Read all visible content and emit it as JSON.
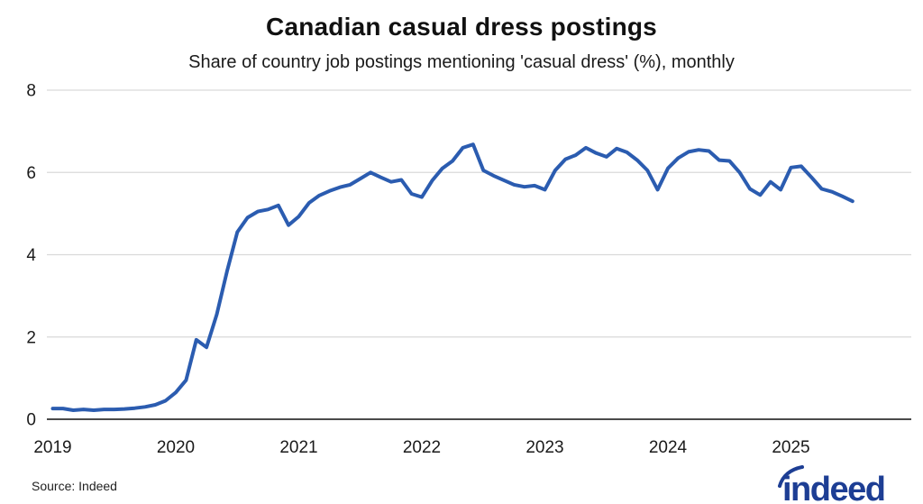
{
  "header": {
    "title": "Canadian casual dress postings",
    "subtitle": "Share of country job postings mentioning 'casual dress' (%), monthly"
  },
  "footer": {
    "source": "Source: Indeed",
    "logo_text": "indeed"
  },
  "colors": {
    "line": "#2b5cb0",
    "grid": "#d9d9d9",
    "axis": "#4a4a4a",
    "tick_text": "#1a1a1a",
    "logo": "#1d3e94"
  },
  "chart_data": {
    "type": "line",
    "title": "Canadian casual dress postings",
    "subtitle": "Share of country job postings mentioning 'casual dress' (%), monthly",
    "unit": "%",
    "frequency": "monthly",
    "start": "2019-01",
    "end": "2025-07",
    "xlabel": "",
    "ylabel": "",
    "ylim": [
      0,
      8
    ],
    "yticks": [
      0,
      2,
      4,
      6,
      8
    ],
    "x_tick_labels": [
      "2019",
      "2020",
      "2021",
      "2022",
      "2023",
      "2024",
      "2025"
    ],
    "grid": "horizontal",
    "legend": "none",
    "series": [
      {
        "name": "Share of Canadian job postings mentioning 'casual dress'",
        "values": [
          0.26,
          0.26,
          0.22,
          0.24,
          0.22,
          0.24,
          0.24,
          0.25,
          0.27,
          0.3,
          0.35,
          0.45,
          0.65,
          0.95,
          1.93,
          1.75,
          2.55,
          3.6,
          4.55,
          4.9,
          5.05,
          5.1,
          5.2,
          4.72,
          4.93,
          5.26,
          5.44,
          5.55,
          5.64,
          5.7,
          5.85,
          6.0,
          5.88,
          5.77,
          5.82,
          5.48,
          5.4,
          5.8,
          6.1,
          6.28,
          6.6,
          6.68,
          6.05,
          5.92,
          5.81,
          5.7,
          5.65,
          5.68,
          5.58,
          6.05,
          6.32,
          6.42,
          6.6,
          6.47,
          6.38,
          6.58,
          6.49,
          6.3,
          6.05,
          5.58,
          6.1,
          6.35,
          6.5,
          6.55,
          6.52,
          6.3,
          6.28,
          6.0,
          5.6,
          5.45,
          5.77,
          5.58,
          6.12,
          6.15,
          5.88,
          5.6,
          5.53,
          5.42,
          5.3
        ]
      }
    ]
  }
}
